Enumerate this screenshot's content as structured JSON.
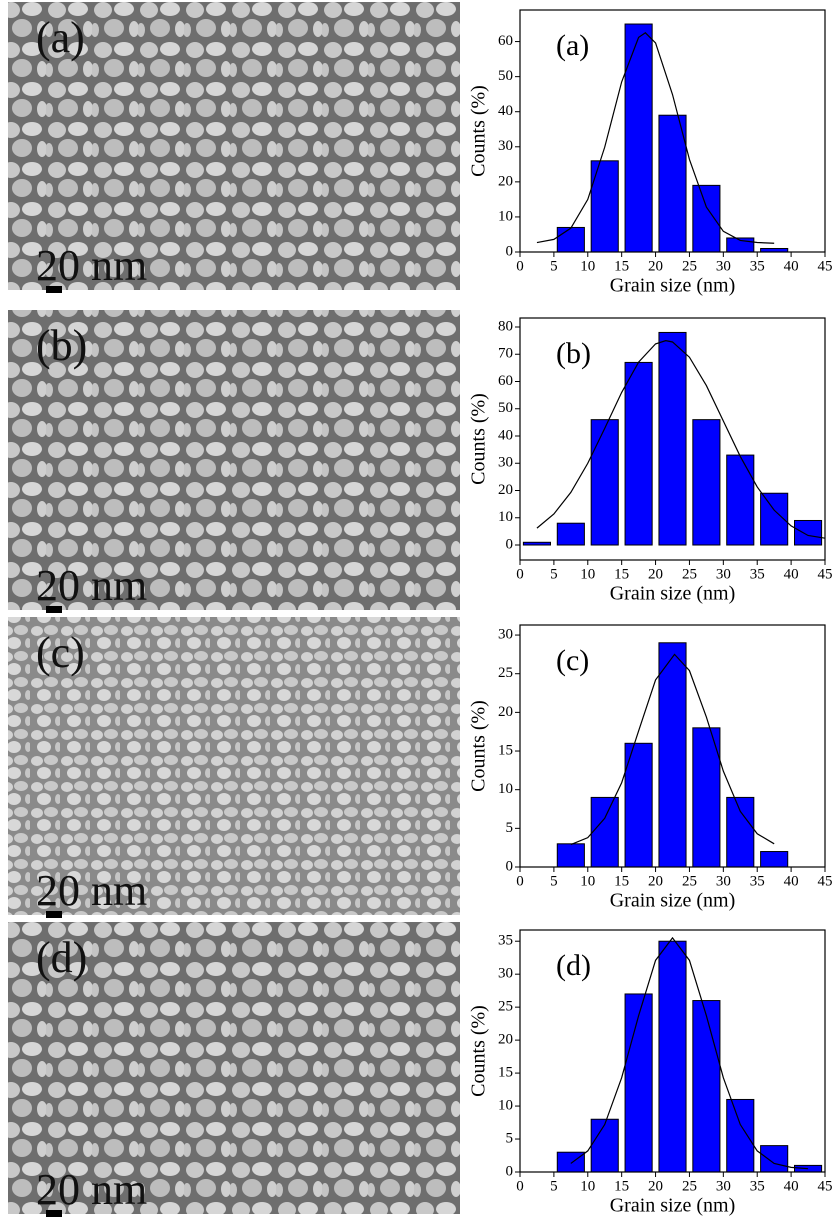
{
  "images": [
    {
      "label": "(a)",
      "scale": "20 nm"
    },
    {
      "label": "(b)",
      "scale": "20 nm"
    },
    {
      "label": "(c)",
      "scale": "20 nm"
    },
    {
      "label": "(d)",
      "scale": "20 nm"
    }
  ],
  "chart_data": [
    {
      "type": "bar",
      "label": "(a)",
      "xlabel": "Grain size (nm)",
      "ylabel": "Counts (%)",
      "color": "#0000ff",
      "x": [
        7.5,
        12.5,
        17.5,
        22.5,
        27.5,
        32.5,
        37.5
      ],
      "values": [
        7,
        26,
        65,
        39,
        19,
        4,
        1
      ],
      "fit": {
        "x": [
          2.5,
          5,
          7.5,
          10,
          12.5,
          15,
          17.5,
          18.5,
          20,
          22.5,
          25,
          27.5,
          30,
          32.5,
          35,
          37.5
        ],
        "values": [
          2.7,
          3.6,
          6.8,
          15,
          29.9,
          48.5,
          61.2,
          62.5,
          59.6,
          44.9,
          26.4,
          12.8,
          5.9,
          3.3,
          2.7,
          2.5
        ]
      },
      "xlim": [
        0,
        45
      ],
      "xticks": [
        0,
        5,
        10,
        15,
        20,
        25,
        30,
        35,
        40,
        45
      ],
      "ylim": [
        0,
        69
      ],
      "yticks": [
        0,
        10,
        20,
        30,
        40,
        50,
        60
      ]
    },
    {
      "type": "bar",
      "label": "(b)",
      "xlabel": "Grain size (nm)",
      "ylabel": "Counts (%)",
      "color": "#0000ff",
      "x": [
        2.5,
        7.5,
        12.5,
        17.5,
        22.5,
        27.5,
        32.5,
        37.5,
        42.5
      ],
      "values": [
        1,
        8,
        46,
        67,
        78,
        46,
        33,
        19,
        9
      ],
      "fit": {
        "x": [
          2.5,
          5,
          7.5,
          10,
          12.5,
          15,
          17.5,
          20,
          21.5,
          22.5,
          25,
          27.5,
          30,
          32.5,
          35,
          37.5,
          40,
          42.5,
          45
        ],
        "values": [
          6.2,
          11.4,
          19.3,
          30,
          42.8,
          56,
          67.1,
          73.8,
          75,
          74.5,
          68.9,
          58.5,
          45.5,
          32.5,
          21.3,
          12.8,
          7,
          3.5,
          2.5
        ]
      },
      "xlim": [
        0,
        45
      ],
      "xticks": [
        0,
        5,
        10,
        15,
        20,
        25,
        30,
        35,
        40,
        45
      ],
      "ylim": [
        -5.5,
        83.3
      ],
      "yticks": [
        0,
        10,
        20,
        30,
        40,
        50,
        60,
        70,
        80
      ]
    },
    {
      "type": "bar",
      "label": "(c)",
      "xlabel": "Grain size (nm)",
      "ylabel": "Counts (%)",
      "color": "#0000ff",
      "x": [
        7.5,
        12.5,
        17.5,
        22.5,
        27.5,
        32.5,
        37.5
      ],
      "values": [
        3,
        9,
        16,
        29,
        18,
        9,
        2
      ],
      "fit": {
        "x": [
          7.5,
          10,
          12.5,
          15,
          17.5,
          20,
          22.8,
          25,
          27.5,
          30,
          32.5,
          35,
          37.5
        ],
        "values": [
          2.9,
          3.8,
          6.3,
          10.9,
          17.6,
          24.2,
          27.5,
          25.4,
          19.4,
          12.4,
          7.2,
          4.3,
          3.0
        ]
      },
      "xlim": [
        0,
        45
      ],
      "xticks": [
        0,
        5,
        10,
        15,
        20,
        25,
        30,
        35,
        40,
        45
      ],
      "ylim": [
        0,
        31.3
      ],
      "yticks": [
        0,
        5,
        10,
        15,
        20,
        25,
        30
      ]
    },
    {
      "type": "bar",
      "label": "(d)",
      "xlabel": "Grain size (nm)",
      "ylabel": "Counts (%)",
      "color": "#0000ff",
      "x": [
        7.5,
        12.5,
        17.5,
        22.5,
        27.5,
        32.5,
        37.5,
        42.5
      ],
      "values": [
        3,
        8,
        27,
        35,
        26,
        11,
        4,
        1
      ],
      "fit": {
        "x": [
          7.5,
          10,
          12.5,
          15,
          17.5,
          20,
          22.5,
          25,
          27.5,
          30,
          32.5,
          35,
          37.5,
          40,
          42.5
        ],
        "values": [
          1.3,
          3.2,
          7.2,
          14.3,
          23.7,
          32.1,
          35.5,
          32.1,
          23.7,
          14.3,
          7.2,
          3.2,
          1.3,
          0.7,
          0.5
        ]
      },
      "xlim": [
        0,
        45
      ],
      "xticks": [
        0,
        5,
        10,
        15,
        20,
        25,
        30,
        35,
        40,
        45
      ],
      "ylim": [
        0,
        36.7
      ],
      "yticks": [
        0,
        5,
        10,
        15,
        20,
        25,
        30,
        35
      ]
    }
  ]
}
